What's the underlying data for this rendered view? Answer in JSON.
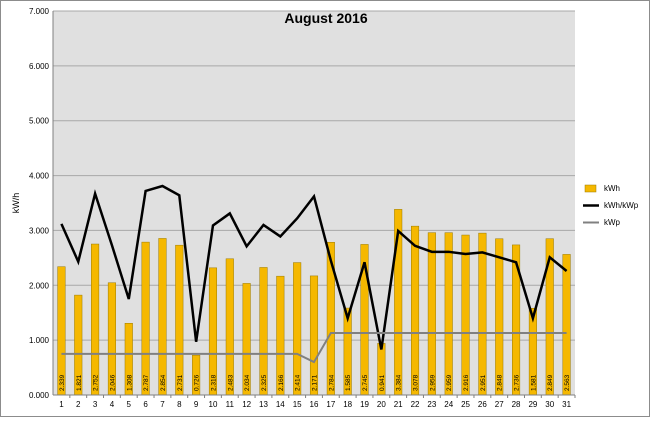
{
  "chart_data": {
    "type": "bar",
    "title": "August 2016",
    "xlabel": "",
    "ylabel": "kW/h",
    "ylim": [
      0,
      7
    ],
    "yticks": [
      "0.000",
      "1.000",
      "2.000",
      "3.000",
      "4.000",
      "5.000",
      "6.000",
      "7.000"
    ],
    "grid": true,
    "legend_position": "right",
    "categories": [
      "1",
      "2",
      "3",
      "4",
      "5",
      "6",
      "7",
      "8",
      "9",
      "10",
      "11",
      "12",
      "13",
      "14",
      "15",
      "16",
      "17",
      "18",
      "19",
      "20",
      "21",
      "22",
      "23",
      "24",
      "25",
      "26",
      "27",
      "28",
      "29",
      "30",
      "31"
    ],
    "series": [
      {
        "name": "kWh",
        "type": "bar",
        "color": "#F5B800",
        "values": [
          2.339,
          1.821,
          2.752,
          2.046,
          1.308,
          2.787,
          2.854,
          2.731,
          0.726,
          2.318,
          2.483,
          2.034,
          2.325,
          2.166,
          2.414,
          2.171,
          2.784,
          1.585,
          2.745,
          0.941,
          3.384,
          3.078,
          2.959,
          2.959,
          2.916,
          2.951,
          2.848,
          2.736,
          1.581,
          2.849,
          2.563
        ],
        "labels": [
          "2.339",
          "1.821",
          "2.752",
          "2.046",
          "1.308",
          "2.787",
          "2.854",
          "2.731",
          "0.726",
          "2.318",
          "2.483",
          "2.034",
          "2.325",
          "2.166",
          "2.414",
          "2.171",
          "2.784",
          "1.585",
          "2.745",
          "0.941",
          "3.384",
          "3.078",
          "2.959",
          "2.959",
          "2.916",
          "2.951",
          "2.848",
          "2.736",
          "1.581",
          "2.849",
          "2.563"
        ]
      },
      {
        "name": "kWh/kWp",
        "type": "line",
        "color": "#000000",
        "values": [
          3.12,
          2.43,
          3.67,
          2.73,
          1.75,
          3.72,
          3.81,
          3.64,
          0.97,
          3.09,
          3.31,
          2.71,
          3.1,
          2.89,
          3.22,
          3.62,
          2.45,
          1.4,
          2.42,
          0.83,
          2.99,
          2.72,
          2.61,
          2.61,
          2.57,
          2.6,
          2.51,
          2.42,
          1.4,
          2.51,
          2.26
        ]
      },
      {
        "name": "kWp",
        "type": "line",
        "color": "#808080",
        "values": [
          0.75,
          0.75,
          0.75,
          0.75,
          0.75,
          0.75,
          0.75,
          0.75,
          0.75,
          0.75,
          0.75,
          0.75,
          0.75,
          0.75,
          0.75,
          0.6,
          1.13,
          1.13,
          1.13,
          1.13,
          1.13,
          1.13,
          1.13,
          1.13,
          1.13,
          1.13,
          1.13,
          1.13,
          1.13,
          1.13,
          1.13
        ]
      }
    ]
  }
}
